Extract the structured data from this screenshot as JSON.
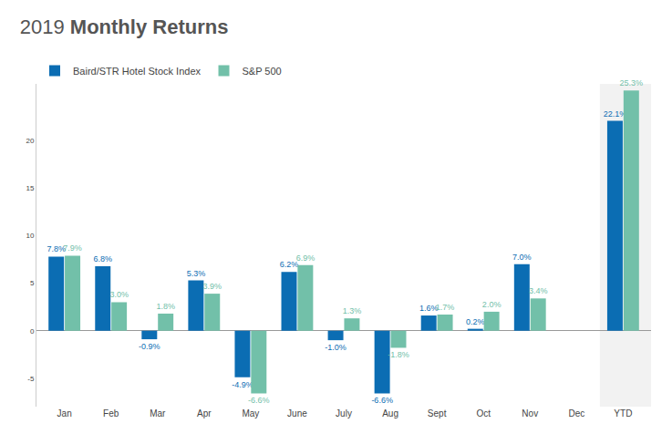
{
  "chart_data": {
    "type": "bar",
    "title": "2019 Monthly Returns",
    "categories": [
      "Jan",
      "Feb",
      "Mar",
      "Apr",
      "May",
      "June",
      "July",
      "Aug",
      "Sept",
      "Oct",
      "Nov",
      "Dec",
      "YTD"
    ],
    "series": [
      {
        "name": "Baird/STR Hotel Stock Index",
        "color": "#0b6db3",
        "values": [
          7.8,
          6.8,
          -0.9,
          5.3,
          -4.9,
          6.2,
          -1.0,
          -6.6,
          1.6,
          0.2,
          7.0,
          null,
          22.1
        ],
        "value_labels": [
          "7.8%",
          "6.8%",
          "-0.9%",
          "5.3%",
          "-4.9%",
          "6.2%",
          "-1.0%",
          "-6.6%",
          "1.6%",
          "0.2%",
          "7.0%",
          null,
          "22.1%"
        ]
      },
      {
        "name": "S&P 500",
        "color": "#72c0a9",
        "values": [
          7.9,
          3.0,
          1.8,
          3.9,
          -6.6,
          6.9,
          1.3,
          -1.8,
          1.7,
          2.0,
          3.4,
          null,
          25.3
        ],
        "value_labels": [
          "7.9%",
          "3.0%",
          "1.8%",
          "3.9%",
          "-6.6%",
          "6.9%",
          "1.3%",
          "-1.8%",
          "1.7%",
          "2.0%",
          "3.4%",
          null,
          "25.3%"
        ]
      }
    ],
    "ylim": [
      -8,
      26
    ],
    "yticks": [
      -5,
      0,
      5,
      10,
      15,
      20
    ],
    "grid": false,
    "legend": "top left",
    "data_labels": true
  }
}
